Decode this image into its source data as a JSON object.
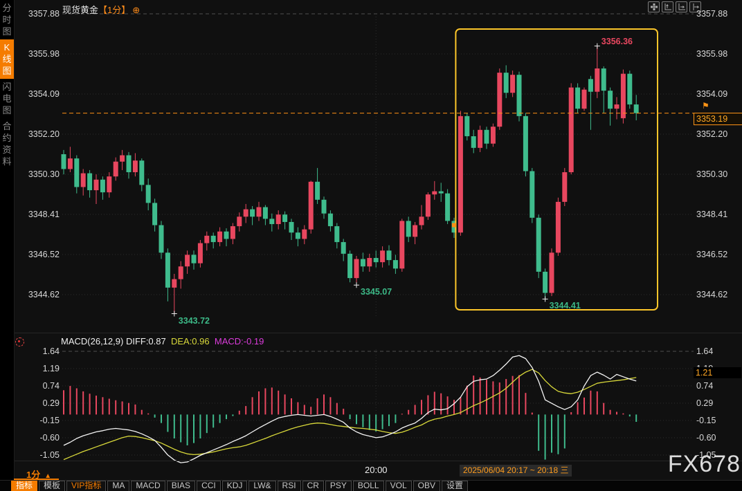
{
  "colors": {
    "up": "#e8475f",
    "down": "#3fbc8d",
    "hist_up": "#e8475f",
    "hist_down": "#3fbc8d",
    "diff_line": "#f5f5f5",
    "dea_line": "#d9d93a",
    "box_yellow": "#fdc62a",
    "price_line": "#ff9015",
    "label_red": "#e8475f",
    "label_green": "#3cb987",
    "accent_orange": "#f57c00",
    "grid": "#2d2d2d",
    "grid_bright": "#4f4f4f"
  },
  "sidebar": {
    "tabs": [
      {
        "label": "分时图",
        "active": false
      },
      {
        "label": "K线图",
        "active": true
      },
      {
        "label": "闪电图",
        "active": false
      },
      {
        "label": "合约资料",
        "active": false
      }
    ]
  },
  "titlebar": {
    "symbol": "现货黄金",
    "interval_tag": "【1分】",
    "add_icon": "⊕"
  },
  "top_icons": [
    "move-tool-icon",
    "axis-scale-left-icon",
    "axis-scale-right-icon",
    "go-to-latest-icon"
  ],
  "macd": {
    "header": {
      "name": "MACD(26,12,9)",
      "diff": "DIFF:0.87",
      "dea": "DEA:0.96",
      "macd": "MACD:-0.19"
    },
    "current_value": "1.21"
  },
  "price_label": {
    "current": "3353.19",
    "alert_icon": "⚑"
  },
  "footer": {
    "time_label": "20:00",
    "date_range": "2025/06/04 20:17 ~ 20:18 三",
    "watermark": "FX678",
    "interval": "1分",
    "interval_arrow": "▲"
  },
  "toolbar": {
    "items": [
      {
        "label": "指标",
        "style": "active"
      },
      {
        "label": "模板",
        "style": ""
      },
      {
        "label": "VIP指标",
        "style": "vip"
      },
      {
        "label": "MA",
        "style": ""
      },
      {
        "label": "MACD",
        "style": ""
      },
      {
        "label": "BIAS",
        "style": ""
      },
      {
        "label": "CCI",
        "style": ""
      },
      {
        "label": "KDJ",
        "style": ""
      },
      {
        "label": "LW&",
        "style": ""
      },
      {
        "label": "RSI",
        "style": ""
      },
      {
        "label": "CR",
        "style": ""
      },
      {
        "label": "PSY",
        "style": ""
      },
      {
        "label": "BOLL",
        "style": ""
      },
      {
        "label": "VOL",
        "style": ""
      },
      {
        "label": "OBV",
        "style": ""
      },
      {
        "label": "设置",
        "style": ""
      }
    ]
  },
  "chart_data": {
    "type": "candlestick",
    "title": "现货黄金 1分钟K线 (spot gold 1-min)",
    "price_ticks": [
      "3357.88",
      "3355.98",
      "3354.09",
      "3352.20",
      "3350.30",
      "3348.41",
      "3346.52",
      "3344.62"
    ],
    "price_range": [
      3344.62,
      3357.88
    ],
    "macd_ticks": [
      "1.64",
      "1.19",
      "0.74",
      "0.29",
      "-0.15",
      "-0.60",
      "-1.05"
    ],
    "macd_range": [
      -1.05,
      1.64
    ],
    "x_ticks": [
      {
        "label": "20:00",
        "index": 48
      }
    ],
    "current_price": 3353.19,
    "highlight_box": {
      "from_index": 61,
      "to_index": 88
    },
    "annotations": [
      {
        "index": 17,
        "price": 3343.72,
        "text": "3343.72",
        "kind": "low"
      },
      {
        "index": 45,
        "price": 3345.07,
        "text": "3345.07",
        "kind": "low"
      },
      {
        "index": 74,
        "price": 3344.41,
        "text": "3344.41",
        "kind": "low"
      },
      {
        "index": 82,
        "price": 3356.36,
        "text": "3356.36",
        "kind": "high"
      },
      {
        "index": 60,
        "price": 3347.9,
        "text": "",
        "kind": "marker"
      }
    ],
    "candles": [
      [
        3351.25,
        3351.45,
        3350.3,
        3350.55
      ],
      [
        3350.55,
        3351.6,
        3350.4,
        3351.05
      ],
      [
        3351.05,
        3351.2,
        3349.4,
        3349.7
      ],
      [
        3349.7,
        3350.55,
        3349.3,
        3350.35
      ],
      [
        3350.35,
        3350.5,
        3349.2,
        3349.55
      ],
      [
        3349.55,
        3350.3,
        3348.9,
        3350.05
      ],
      [
        3350.05,
        3350.2,
        3349.1,
        3349.45
      ],
      [
        3349.45,
        3350.4,
        3349.2,
        3350.2
      ],
      [
        3350.2,
        3351.1,
        3350.0,
        3350.9
      ],
      [
        3350.9,
        3351.45,
        3350.5,
        3351.2
      ],
      [
        3351.2,
        3351.35,
        3350.1,
        3350.4
      ],
      [
        3350.4,
        3351.3,
        3350.2,
        3350.95
      ],
      [
        3350.95,
        3351.05,
        3349.5,
        3349.8
      ],
      [
        3349.8,
        3350.1,
        3348.6,
        3348.95
      ],
      [
        3348.95,
        3349.15,
        3347.6,
        3347.9
      ],
      [
        3347.9,
        3348.1,
        3346.3,
        3346.6
      ],
      [
        3346.6,
        3346.8,
        3344.3,
        3344.95
      ],
      [
        3344.95,
        3345.6,
        3343.72,
        3345.35
      ],
      [
        3345.35,
        3346.2,
        3344.9,
        3345.95
      ],
      [
        3345.95,
        3346.7,
        3345.6,
        3346.5
      ],
      [
        3346.5,
        3346.7,
        3345.8,
        3346.1
      ],
      [
        3346.1,
        3347.2,
        3345.9,
        3347.05
      ],
      [
        3347.05,
        3347.6,
        3346.7,
        3347.4
      ],
      [
        3347.4,
        3347.55,
        3346.8,
        3347.1
      ],
      [
        3347.1,
        3347.8,
        3346.9,
        3347.6
      ],
      [
        3347.6,
        3347.75,
        3346.9,
        3347.25
      ],
      [
        3347.25,
        3348.0,
        3347.0,
        3347.85
      ],
      [
        3347.85,
        3348.5,
        3347.6,
        3348.3
      ],
      [
        3348.3,
        3348.9,
        3348.0,
        3348.65
      ],
      [
        3348.65,
        3348.8,
        3347.9,
        3348.3
      ],
      [
        3348.3,
        3349.0,
        3348.1,
        3348.75
      ],
      [
        3348.75,
        3348.85,
        3347.9,
        3348.2
      ],
      [
        3348.2,
        3348.45,
        3347.6,
        3347.95
      ],
      [
        3347.95,
        3348.6,
        3347.7,
        3348.4
      ],
      [
        3348.4,
        3348.55,
        3347.7,
        3348.05
      ],
      [
        3348.05,
        3348.2,
        3347.2,
        3347.55
      ],
      [
        3347.55,
        3347.8,
        3346.9,
        3347.25
      ],
      [
        3347.25,
        3347.9,
        3347.0,
        3347.7
      ],
      [
        3347.7,
        3350.0,
        3347.5,
        3349.95
      ],
      [
        3349.95,
        3350.6,
        3348.9,
        3349.1
      ],
      [
        3349.1,
        3349.25,
        3348.2,
        3348.45
      ],
      [
        3348.45,
        3348.6,
        3347.6,
        3347.85
      ],
      [
        3347.85,
        3348.0,
        3346.8,
        3347.1
      ],
      [
        3347.1,
        3347.25,
        3346.2,
        3346.55
      ],
      [
        3346.55,
        3346.7,
        3345.2,
        3345.4
      ],
      [
        3345.4,
        3346.45,
        3345.07,
        3346.3
      ],
      [
        3346.3,
        3346.6,
        3345.7,
        3345.95
      ],
      [
        3345.95,
        3346.55,
        3345.7,
        3346.35
      ],
      [
        3346.35,
        3346.7,
        3345.9,
        3346.15
      ],
      [
        3346.15,
        3346.9,
        3345.9,
        3346.7
      ],
      [
        3346.7,
        3346.95,
        3346.0,
        3346.25
      ],
      [
        3346.25,
        3346.5,
        3345.6,
        3345.85
      ],
      [
        3345.85,
        3348.2,
        3345.7,
        3348.1
      ],
      [
        3348.1,
        3348.3,
        3347.1,
        3347.35
      ],
      [
        3347.35,
        3348.05,
        3347.0,
        3347.9
      ],
      [
        3347.9,
        3348.85,
        3347.7,
        3348.3
      ],
      [
        3348.3,
        3349.45,
        3348.15,
        3349.35
      ],
      [
        3349.35,
        3349.98,
        3349.1,
        3349.5
      ],
      [
        3349.5,
        3349.9,
        3349.0,
        3349.4
      ],
      [
        3349.4,
        3349.6,
        3347.95,
        3348.1
      ],
      [
        3348.1,
        3348.25,
        3347.3,
        3347.55
      ],
      [
        3347.55,
        3353.3,
        3347.4,
        3353.05
      ],
      [
        3353.05,
        3353.2,
        3351.9,
        3352.1
      ],
      [
        3352.1,
        3352.4,
        3351.3,
        3351.55
      ],
      [
        3351.55,
        3352.6,
        3351.35,
        3352.4
      ],
      [
        3352.4,
        3352.55,
        3351.5,
        3351.75
      ],
      [
        3351.75,
        3352.7,
        3351.6,
        3352.55
      ],
      [
        3352.55,
        3355.3,
        3352.4,
        3355.1
      ],
      [
        3355.1,
        3355.45,
        3353.9,
        3354.15
      ],
      [
        3354.15,
        3355.2,
        3353.95,
        3355.0
      ],
      [
        3355.0,
        3355.15,
        3352.8,
        3353.05
      ],
      [
        3353.05,
        3353.2,
        3350.2,
        3350.45
      ],
      [
        3350.45,
        3350.6,
        3348.0,
        3348.25
      ],
      [
        3348.25,
        3348.4,
        3345.4,
        3345.7
      ],
      [
        3345.7,
        3345.85,
        3344.41,
        3344.7
      ],
      [
        3344.7,
        3346.8,
        3344.55,
        3346.6
      ],
      [
        3346.6,
        3349.2,
        3346.45,
        3349.0
      ],
      [
        3349.0,
        3350.6,
        3348.8,
        3350.4
      ],
      [
        3350.4,
        3354.6,
        3350.3,
        3354.4
      ],
      [
        3354.4,
        3354.6,
        3353.2,
        3353.4
      ],
      [
        3353.4,
        3354.4,
        3353.3,
        3354.3
      ],
      [
        3354.8,
        3354.95,
        3352.4,
        3354.2
      ],
      [
        3354.2,
        3356.36,
        3353.9,
        3355.3
      ],
      [
        3355.3,
        3355.4,
        3353.2,
        3354.25
      ],
      [
        3354.25,
        3354.4,
        3352.6,
        3353.4
      ],
      [
        3353.4,
        3353.95,
        3352.9,
        3353.6
      ],
      [
        3352.95,
        3355.25,
        3352.7,
        3355.05
      ],
      [
        3355.05,
        3355.2,
        3353.4,
        3353.6
      ],
      [
        3353.6,
        3354.05,
        3352.85,
        3353.19
      ]
    ],
    "macd_hist": [
      0.63,
      0.74,
      0.68,
      0.6,
      0.54,
      0.49,
      0.45,
      0.41,
      0.37,
      0.34,
      0.3,
      0.26,
      0.12,
      0.03,
      -0.08,
      -0.22,
      -0.45,
      -0.62,
      -0.72,
      -0.8,
      -0.74,
      -0.62,
      -0.48,
      -0.34,
      -0.22,
      -0.12,
      -0.04,
      0.1,
      0.22,
      0.45,
      0.6,
      0.68,
      0.7,
      0.62,
      0.52,
      0.42,
      0.32,
      0.25,
      0.2,
      0.42,
      0.52,
      0.45,
      0.3,
      0.15,
      -0.12,
      -0.25,
      -0.33,
      -0.4,
      -0.44,
      -0.38,
      -0.3,
      -0.22,
      0.02,
      0.12,
      0.25,
      0.38,
      0.5,
      0.59,
      0.55,
      0.47,
      0.38,
      0.45,
      0.75,
      1.01,
      0.96,
      0.9,
      0.86,
      0.83,
      0.92,
      1.0,
      1.02,
      0.56,
      0.05,
      -0.94,
      -1.17,
      -0.99,
      -1.03,
      -0.88,
      0.06,
      0.32,
      0.44,
      0.62,
      0.6,
      0.3,
      0.12,
      0.07,
      0.03,
      -0.05,
      -0.19
    ],
    "macd_diff": [
      -0.8,
      -0.72,
      -0.62,
      -0.55,
      -0.5,
      -0.45,
      -0.42,
      -0.38,
      -0.36,
      -0.38,
      -0.4,
      -0.44,
      -0.5,
      -0.58,
      -0.67,
      -0.85,
      -1.05,
      -1.18,
      -1.25,
      -1.23,
      -1.15,
      -1.06,
      -0.99,
      -0.92,
      -0.85,
      -0.78,
      -0.7,
      -0.63,
      -0.55,
      -0.45,
      -0.35,
      -0.26,
      -0.17,
      -0.09,
      -0.05,
      -0.02,
      0.0,
      -0.02,
      -0.04,
      -0.02,
      0.0,
      -0.05,
      -0.12,
      -0.2,
      -0.35,
      -0.45,
      -0.52,
      -0.56,
      -0.6,
      -0.58,
      -0.52,
      -0.45,
      -0.35,
      -0.28,
      -0.22,
      -0.1,
      0.05,
      0.14,
      0.12,
      0.15,
      0.28,
      0.45,
      0.72,
      0.86,
      0.9,
      0.92,
      1.01,
      1.15,
      1.31,
      1.49,
      1.53,
      1.45,
      1.22,
      0.86,
      0.38,
      0.29,
      0.2,
      0.13,
      0.2,
      0.38,
      0.74,
      1.01,
      1.1,
      1.02,
      0.92,
      1.04,
      0.98,
      0.92,
      0.87
    ],
    "macd_dea": [
      -1.17,
      -1.1,
      -1.03,
      -0.96,
      -0.9,
      -0.84,
      -0.78,
      -0.72,
      -0.66,
      -0.6,
      -0.56,
      -0.57,
      -0.6,
      -0.64,
      -0.68,
      -0.74,
      -0.82,
      -0.9,
      -0.97,
      -1.02,
      -1.04,
      -1.03,
      -1.0,
      -0.97,
      -0.93,
      -0.89,
      -0.86,
      -0.84,
      -0.8,
      -0.74,
      -0.68,
      -0.62,
      -0.55,
      -0.49,
      -0.43,
      -0.37,
      -0.32,
      -0.28,
      -0.24,
      -0.22,
      -0.23,
      -0.26,
      -0.29,
      -0.31,
      -0.33,
      -0.35,
      -0.36,
      -0.38,
      -0.4,
      -0.44,
      -0.47,
      -0.49,
      -0.46,
      -0.4,
      -0.33,
      -0.27,
      -0.18,
      -0.12,
      -0.09,
      -0.04,
      0.0,
      0.05,
      0.14,
      0.23,
      0.3,
      0.38,
      0.47,
      0.56,
      0.68,
      0.84,
      0.99,
      1.1,
      1.17,
      1.08,
      0.88,
      0.72,
      0.6,
      0.56,
      0.54,
      0.58,
      0.65,
      0.73,
      0.81,
      0.84,
      0.86,
      0.88,
      0.9,
      0.93,
      0.96
    ]
  }
}
